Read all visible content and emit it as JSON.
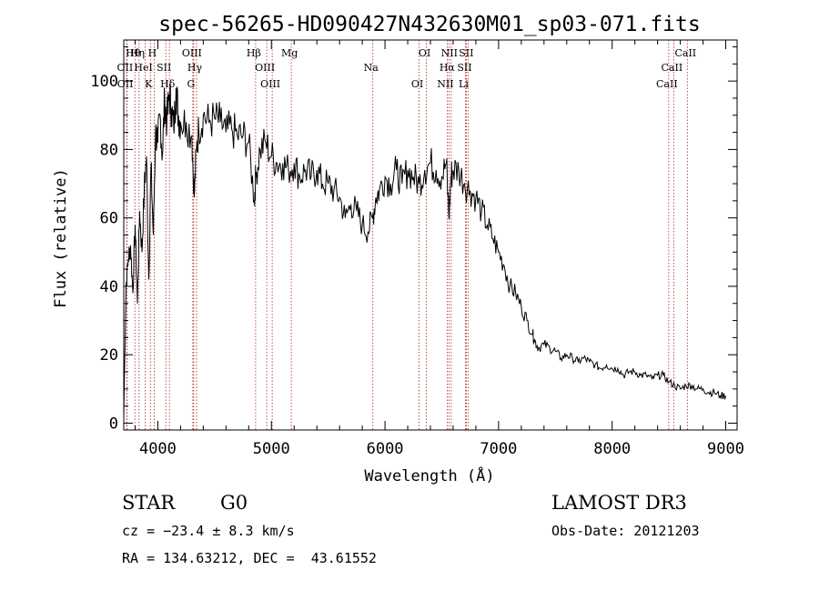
{
  "chart_data": {
    "type": "line",
    "title": "spec-56265-HD090427N432630M01_sp03-071.fits",
    "xlabel": "Wavelength (Å)",
    "ylabel": "Flux (relative)",
    "xlim": [
      3700,
      9100
    ],
    "ylim": [
      -2,
      112
    ],
    "x_ticks": [
      4000,
      5000,
      6000,
      7000,
      8000,
      9000
    ],
    "x_tick_labels": [
      "4000",
      "5000",
      "6000",
      "7000",
      "8000",
      "9000"
    ],
    "y_ticks": [
      0,
      20,
      40,
      60,
      80,
      100
    ],
    "y_tick_labels": [
      "0",
      "20",
      "40",
      "60",
      "80",
      "100"
    ],
    "grid": false,
    "series": [
      {
        "name": "flux",
        "x": [
          3700,
          3720,
          3740,
          3760,
          3780,
          3800,
          3820,
          3840,
          3860,
          3880,
          3900,
          3920,
          3940,
          3960,
          3980,
          4000,
          4020,
          4040,
          4060,
          4080,
          4100,
          4120,
          4140,
          4160,
          4180,
          4200,
          4250,
          4300,
          4320,
          4340,
          4360,
          4400,
          4450,
          4500,
          4550,
          4600,
          4650,
          4700,
          4750,
          4800,
          4850,
          4861,
          4900,
          4950,
          5000,
          5050,
          5100,
          5150,
          5200,
          5250,
          5300,
          5350,
          5400,
          5450,
          5500,
          5550,
          5600,
          5650,
          5700,
          5750,
          5800,
          5850,
          5890,
          5920,
          5950,
          6000,
          6050,
          6100,
          6150,
          6200,
          6250,
          6300,
          6350,
          6400,
          6450,
          6500,
          6540,
          6563,
          6580,
          6600,
          6650,
          6700,
          6750,
          6800,
          6850,
          6900,
          6950,
          7000,
          7050,
          7100,
          7150,
          7200,
          7250,
          7300,
          7320,
          7350,
          7400,
          7450,
          7500,
          7550,
          7600,
          7650,
          7700,
          7750,
          7800,
          7850,
          7900,
          7950,
          8000,
          8050,
          8100,
          8150,
          8200,
          8250,
          8300,
          8350,
          8400,
          8450,
          8500,
          8550,
          8600,
          8650,
          8700,
          8750,
          8800,
          8850,
          8900,
          8950,
          9000
        ],
        "y": [
          2,
          40,
          48,
          52,
          38,
          58,
          35,
          62,
          50,
          68,
          78,
          42,
          75,
          55,
          85,
          82,
          90,
          78,
          95,
          88,
          96,
          92,
          86,
          98,
          90,
          88,
          88,
          84,
          66,
          80,
          86,
          90,
          88,
          89,
          88,
          85,
          86,
          84,
          84,
          82,
          65,
          72,
          80,
          82,
          78,
          76,
          76,
          74,
          76,
          72,
          74,
          72,
          74,
          70,
          70,
          68,
          66,
          60,
          64,
          62,
          58,
          56,
          60,
          66,
          68,
          72,
          70,
          74,
          70,
          74,
          72,
          70,
          74,
          76,
          74,
          72,
          76,
          60,
          72,
          74,
          74,
          70,
          68,
          66,
          62,
          58,
          54,
          50,
          46,
          40,
          38,
          34,
          30,
          26,
          24,
          22,
          23,
          22,
          21,
          19,
          20,
          19,
          18,
          19,
          18,
          17,
          16,
          17,
          16,
          16,
          14,
          15,
          15,
          14,
          14,
          13,
          14,
          14,
          12,
          11,
          10,
          11,
          11,
          10,
          10,
          9,
          9,
          8,
          8
        ]
      }
    ],
    "line_markers": [
      {
        "label": "Hθ",
        "wavelength": 3798
      },
      {
        "label": "OII",
        "wavelength": 3727
      },
      {
        "label": "OII",
        "wavelength": 3729
      },
      {
        "label": "Hη",
        "wavelength": 3835
      },
      {
        "label": "HeI",
        "wavelength": 3889
      },
      {
        "label": "K",
        "wavelength": 3934
      },
      {
        "label": "H",
        "wavelength": 3968
      },
      {
        "label": "SII",
        "wavelength": 4070
      },
      {
        "label": "Hδ",
        "wavelength": 4102
      },
      {
        "label": "OIII",
        "wavelength": 4316
      },
      {
        "label": "Hγ",
        "wavelength": 4341
      },
      {
        "label": "G",
        "wavelength": 4308
      },
      {
        "label": "Hβ",
        "wavelength": 4861
      },
      {
        "label": "OIII",
        "wavelength": 4959
      },
      {
        "label": "OIII",
        "wavelength": 5007
      },
      {
        "label": "Mg",
        "wavelength": 5175
      },
      {
        "label": "Na",
        "wavelength": 5893
      },
      {
        "label": "OI",
        "wavelength": 6300
      },
      {
        "label": "OI",
        "wavelength": 6364
      },
      {
        "label": "Hα",
        "wavelength": 6563
      },
      {
        "label": "NII",
        "wavelength": 6548
      },
      {
        "label": "NII",
        "wavelength": 6583
      },
      {
        "label": "SII",
        "wavelength": 6716
      },
      {
        "label": "Li",
        "wavelength": 6708
      },
      {
        "label": "SII",
        "wavelength": 6731
      },
      {
        "label": "CaII",
        "wavelength": 8542
      },
      {
        "label": "CaII",
        "wavelength": 8498
      },
      {
        "label": "CaII",
        "wavelength": 8662
      }
    ]
  },
  "info": {
    "class_label": "STAR",
    "subclass": "G0",
    "survey": "LAMOST DR3",
    "cz_line": "cz = −23.4 ± 8.3 km/s",
    "obs_date": "Obs-Date: 20121203",
    "coords": "RA = 134.63212, DEC =  43.61552"
  }
}
